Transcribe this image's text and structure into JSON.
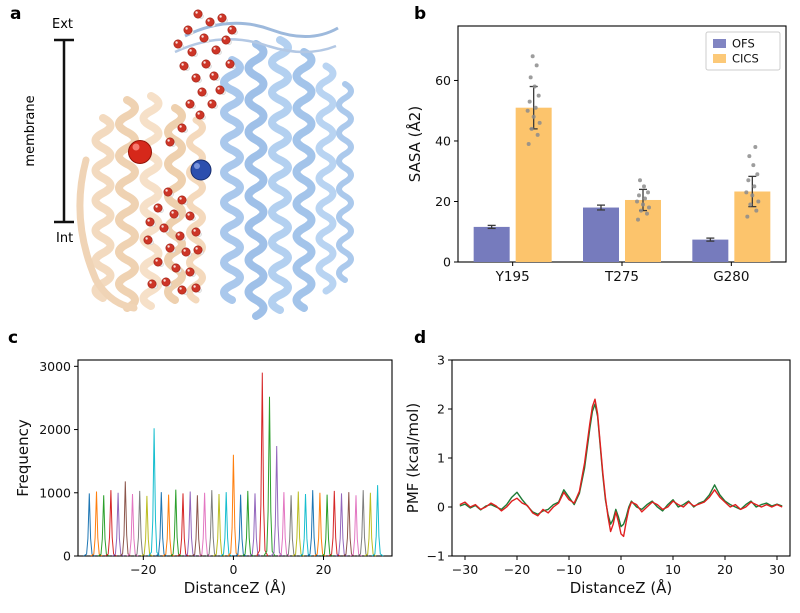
{
  "panels": {
    "a": "a",
    "b": "b",
    "c": "c",
    "d": "d"
  },
  "panel_a": {
    "ext": "Ext",
    "int": "Int",
    "membrane": "membrane"
  },
  "chart_data": [
    {
      "id": "sasa_bars",
      "type": "bar",
      "categories": [
        "Y195",
        "T275",
        "G280"
      ],
      "series": [
        {
          "name": "OFS",
          "color": "#767bbd",
          "values": [
            11.6,
            18.0,
            7.4
          ],
          "errors": [
            0.5,
            0.8,
            0.5
          ]
        },
        {
          "name": "CICS",
          "color": "#fcc46c",
          "values": [
            51.0,
            20.5,
            23.3
          ],
          "errors": [
            7.0,
            3.5,
            5.0
          ]
        }
      ],
      "scatter_color": "#8c8c8c",
      "scatter": [
        [
          39,
          42,
          44,
          46,
          48,
          50,
          51,
          53,
          55,
          58,
          61,
          65,
          68
        ],
        [
          14,
          16,
          17,
          18,
          19,
          20,
          21,
          22,
          23,
          25,
          27
        ],
        [
          15,
          17,
          19,
          20,
          22,
          23,
          25,
          27,
          29,
          32,
          35,
          38
        ]
      ],
      "ylabel": "SASA (Å2)",
      "ylim": [
        0,
        78
      ],
      "yticks": [
        0,
        20,
        40,
        60
      ],
      "legend_labels": [
        "OFS",
        "CICS"
      ]
    },
    {
      "id": "water_frequency",
      "type": "line",
      "xlabel": "DistanceZ (Å)",
      "ylabel": "Frequency",
      "xlim": [
        -34.5,
        35.2
      ],
      "ylim": [
        0,
        3100
      ],
      "xticks": [
        -20,
        0,
        20
      ],
      "yticks": [
        0,
        1000,
        2000,
        3000
      ],
      "colors": [
        "#1f77b4",
        "#ff7f0e",
        "#2ca02c",
        "#d62728",
        "#9467bd",
        "#8c564b",
        "#e377c2",
        "#7f7f7f",
        "#bcbd22",
        "#17becf"
      ],
      "peaks": [
        [
          -32,
          990,
          0
        ],
        [
          -30.4,
          1020,
          1
        ],
        [
          -28.8,
          960,
          2
        ],
        [
          -27.2,
          1040,
          3
        ],
        [
          -25.6,
          1000,
          4
        ],
        [
          -24,
          1180,
          5
        ],
        [
          -22.4,
          980,
          6
        ],
        [
          -20.8,
          1030,
          7
        ],
        [
          -19.2,
          950,
          8
        ],
        [
          -17.6,
          2020,
          9
        ],
        [
          -16,
          1010,
          0
        ],
        [
          -14.4,
          970,
          1
        ],
        [
          -12.8,
          1050,
          2
        ],
        [
          -11.2,
          990,
          3
        ],
        [
          -9.6,
          1020,
          4
        ],
        [
          -8,
          960,
          5
        ],
        [
          -6.4,
          1000,
          6
        ],
        [
          -4.8,
          1040,
          7
        ],
        [
          -3.2,
          980,
          8
        ],
        [
          -1.6,
          1010,
          9
        ],
        [
          0,
          1600,
          1
        ],
        [
          1.6,
          970,
          0
        ],
        [
          3.2,
          1030,
          2
        ],
        [
          4.8,
          990,
          4
        ],
        [
          6.4,
          2900,
          3
        ],
        [
          8,
          2520,
          2
        ],
        [
          9.6,
          1740,
          4
        ],
        [
          11.2,
          1010,
          6
        ],
        [
          12.8,
          960,
          7
        ],
        [
          14.4,
          1020,
          8
        ],
        [
          16,
          980,
          9
        ],
        [
          17.6,
          1040,
          0
        ],
        [
          19.2,
          1000,
          1
        ],
        [
          20.8,
          970,
          2
        ],
        [
          22.4,
          1030,
          3
        ],
        [
          24,
          990,
          4
        ],
        [
          25.6,
          1010,
          5
        ],
        [
          27.2,
          960,
          6
        ],
        [
          28.8,
          1040,
          7
        ],
        [
          30.4,
          1000,
          8
        ],
        [
          32,
          1120,
          9
        ]
      ]
    },
    {
      "id": "pmf",
      "type": "line",
      "xlabel": "DistanceZ (Å)",
      "ylabel": "PMF (kcal/mol)",
      "xlim": [
        -32.5,
        32.5
      ],
      "ylim": [
        -1,
        3
      ],
      "xticks": [
        -30,
        -20,
        -10,
        0,
        10,
        20,
        30
      ],
      "yticks": [
        -1,
        0,
        1,
        2,
        3
      ],
      "series": [
        {
          "name": "replica-red",
          "color": "#e01f1f",
          "points": [
            [
              -31,
              0.05
            ],
            [
              -30,
              0.1
            ],
            [
              -29,
              0.0
            ],
            [
              -28,
              0.05
            ],
            [
              -27,
              -0.05
            ],
            [
              -26,
              0.0
            ],
            [
              -25,
              0.08
            ],
            [
              -24,
              0.02
            ],
            [
              -23,
              -0.08
            ],
            [
              -22,
              0.0
            ],
            [
              -21,
              0.12
            ],
            [
              -20,
              0.18
            ],
            [
              -19,
              0.08
            ],
            [
              -18,
              0.03
            ],
            [
              -17,
              -0.12
            ],
            [
              -16,
              -0.18
            ],
            [
              -15,
              -0.05
            ],
            [
              -14,
              -0.12
            ],
            [
              -13,
              0.0
            ],
            [
              -12,
              0.08
            ],
            [
              -11,
              0.3
            ],
            [
              -10,
              0.15
            ],
            [
              -9,
              0.08
            ],
            [
              -8,
              0.32
            ],
            [
              -7,
              0.9
            ],
            [
              -6,
              1.7
            ],
            [
              -5.5,
              2.05
            ],
            [
              -5,
              2.2
            ],
            [
              -4.5,
              1.9
            ],
            [
              -4,
              1.3
            ],
            [
              -3.5,
              0.7
            ],
            [
              -3,
              0.2
            ],
            [
              -2.5,
              -0.2
            ],
            [
              -2,
              -0.5
            ],
            [
              -1.5,
              -0.35
            ],
            [
              -1,
              -0.1
            ],
            [
              -0.5,
              -0.3
            ],
            [
              0,
              -0.55
            ],
            [
              0.5,
              -0.6
            ],
            [
              1,
              -0.3
            ],
            [
              1.5,
              -0.05
            ],
            [
              2,
              0.1
            ],
            [
              3,
              0.05
            ],
            [
              4,
              -0.1
            ],
            [
              5,
              0.0
            ],
            [
              6,
              0.1
            ],
            [
              7,
              0.05
            ],
            [
              8,
              -0.05
            ],
            [
              9,
              0.0
            ],
            [
              10,
              0.12
            ],
            [
              11,
              0.05
            ],
            [
              12,
              0.0
            ],
            [
              13,
              0.1
            ],
            [
              14,
              0.02
            ],
            [
              15,
              0.06
            ],
            [
              16,
              0.1
            ],
            [
              17,
              0.2
            ],
            [
              18,
              0.35
            ],
            [
              19,
              0.2
            ],
            [
              20,
              0.1
            ],
            [
              21,
              0.0
            ],
            [
              22,
              0.05
            ],
            [
              23,
              -0.05
            ],
            [
              24,
              0.0
            ],
            [
              25,
              0.1
            ],
            [
              26,
              0.05
            ],
            [
              27,
              0.0
            ],
            [
              28,
              0.05
            ],
            [
              29,
              0.0
            ],
            [
              30,
              0.05
            ],
            [
              31,
              0.0
            ]
          ]
        },
        {
          "name": "replica-green",
          "color": "#1e7a35",
          "points": [
            [
              -31,
              0.02
            ],
            [
              -30,
              0.06
            ],
            [
              -29,
              -0.02
            ],
            [
              -28,
              0.03
            ],
            [
              -27,
              -0.06
            ],
            [
              -26,
              0.02
            ],
            [
              -25,
              0.05
            ],
            [
              -24,
              0.0
            ],
            [
              -23,
              -0.05
            ],
            [
              -22,
              0.05
            ],
            [
              -21,
              0.2
            ],
            [
              -20,
              0.3
            ],
            [
              -19,
              0.15
            ],
            [
              -18,
              0.02
            ],
            [
              -17,
              -0.1
            ],
            [
              -16,
              -0.15
            ],
            [
              -15,
              -0.08
            ],
            [
              -14,
              -0.05
            ],
            [
              -13,
              0.05
            ],
            [
              -12,
              0.1
            ],
            [
              -11,
              0.35
            ],
            [
              -10,
              0.2
            ],
            [
              -9,
              0.05
            ],
            [
              -8,
              0.28
            ],
            [
              -7,
              0.8
            ],
            [
              -6,
              1.6
            ],
            [
              -5.5,
              1.95
            ],
            [
              -5,
              2.1
            ],
            [
              -4.5,
              1.85
            ],
            [
              -4,
              1.25
            ],
            [
              -3.5,
              0.65
            ],
            [
              -3,
              0.15
            ],
            [
              -2.5,
              -0.15
            ],
            [
              -2,
              -0.35
            ],
            [
              -1.5,
              -0.25
            ],
            [
              -1,
              -0.05
            ],
            [
              -0.5,
              -0.2
            ],
            [
              0,
              -0.4
            ],
            [
              0.5,
              -0.35
            ],
            [
              1,
              -0.2
            ],
            [
              1.5,
              0.0
            ],
            [
              2,
              0.12
            ],
            [
              3,
              0.0
            ],
            [
              4,
              -0.05
            ],
            [
              5,
              0.05
            ],
            [
              6,
              0.12
            ],
            [
              7,
              0.0
            ],
            [
              8,
              -0.08
            ],
            [
              9,
              0.05
            ],
            [
              10,
              0.15
            ],
            [
              11,
              0.0
            ],
            [
              12,
              0.05
            ],
            [
              13,
              0.12
            ],
            [
              14,
              0.0
            ],
            [
              15,
              0.08
            ],
            [
              16,
              0.12
            ],
            [
              17,
              0.25
            ],
            [
              18,
              0.45
            ],
            [
              19,
              0.25
            ],
            [
              20,
              0.12
            ],
            [
              21,
              0.05
            ],
            [
              22,
              0.0
            ],
            [
              23,
              -0.05
            ],
            [
              24,
              0.05
            ],
            [
              25,
              0.12
            ],
            [
              26,
              0.0
            ],
            [
              27,
              0.05
            ],
            [
              28,
              0.08
            ],
            [
              29,
              0.02
            ],
            [
              30,
              0.06
            ],
            [
              31,
              0.02
            ]
          ]
        }
      ]
    }
  ]
}
